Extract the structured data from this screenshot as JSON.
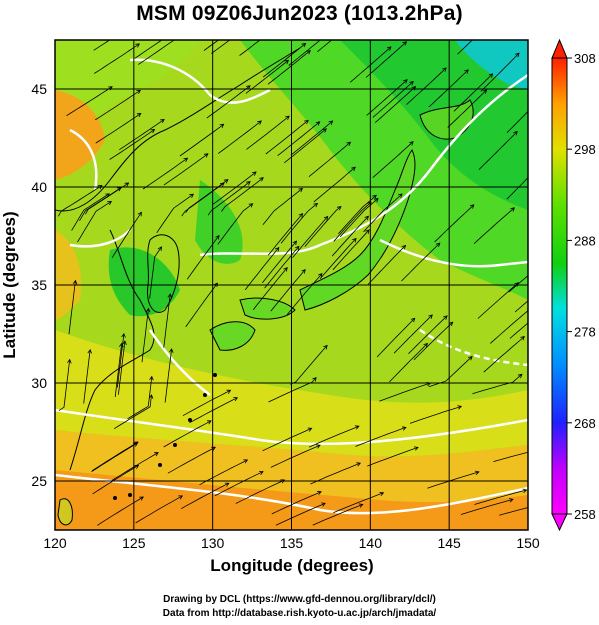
{
  "title": "MSM 09Z06Jun2023 (1013.2hPa)",
  "axes": {
    "xlabel": "Longitude (degrees)",
    "ylabel": "Latitude  (degrees)",
    "lon_range": [
      120,
      150
    ],
    "lat_range": [
      22.5,
      47.5
    ],
    "lon_ticks": [
      120,
      125,
      130,
      135,
      140,
      145,
      150
    ],
    "lat_ticks": [
      25,
      30,
      35,
      40,
      45
    ]
  },
  "colorbar": {
    "min": 258,
    "max": 308,
    "labels": [
      "308",
      "298",
      "288",
      "278",
      "268",
      "258"
    ]
  },
  "credits": {
    "line1": "Drawing by DCL (https://www.gfd-dennou.org/library/dcl/)",
    "line2": "Data from http://database.rish.kyoto-u.ac.jp/arch/jmadata/"
  },
  "colors": {
    "warm": "#f4a11c",
    "mid": "#8be01a",
    "cool": "#21d41a",
    "contour": "#ffffff"
  }
}
